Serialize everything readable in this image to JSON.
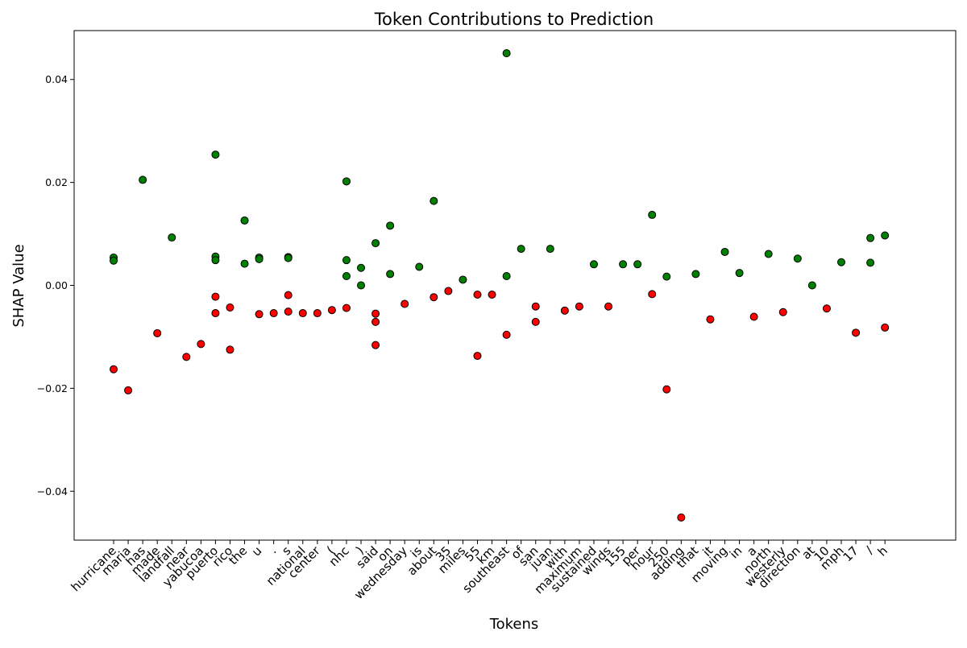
{
  "chart_data": {
    "type": "scatter",
    "title": "Token Contributions to Prediction",
    "xlabel": "Tokens",
    "ylabel": "SHAP Value",
    "ylim": [
      -0.0495,
      0.0495
    ],
    "yticks": [
      -0.04,
      -0.02,
      0.0,
      0.02,
      0.04
    ],
    "ytick_labels": [
      "−0.04",
      "−0.02",
      "0.00",
      "0.02",
      "0.04"
    ],
    "grid": false,
    "legend": "none",
    "colors": {
      "positive": "#008000",
      "negative": "#ff0000",
      "edge": "#000000"
    },
    "categories": [
      "hurricane",
      "maria",
      "has",
      "made",
      "landfall",
      "near",
      "yabucoa",
      "puerto",
      "rico",
      "the",
      "u",
      ".",
      "s",
      "national",
      "center",
      "(",
      "nhc",
      ")",
      "said",
      "on",
      "wednesday",
      "is",
      "about",
      "35",
      "miles",
      "55",
      "km",
      "southeast",
      "of",
      "san",
      "juan",
      "with",
      "maximum",
      "sustained",
      "winds",
      "155",
      "per",
      "hour",
      "250",
      "adding",
      "that",
      "it",
      "moving",
      "in",
      "a",
      "north",
      "westerly",
      "direction",
      "at",
      "10",
      "mph",
      "17",
      "/",
      "h"
    ],
    "points": [
      {
        "x": "hurricane",
        "y": 0.0054
      },
      {
        "x": "hurricane",
        "y": 0.0048
      },
      {
        "x": "hurricane",
        "y": -0.0163
      },
      {
        "x": "maria",
        "y": -0.0204
      },
      {
        "x": "has",
        "y": 0.0205
      },
      {
        "x": "made",
        "y": -0.0093
      },
      {
        "x": "landfall",
        "y": 0.0093
      },
      {
        "x": "near",
        "y": -0.0139
      },
      {
        "x": "yabucoa",
        "y": -0.0114
      },
      {
        "x": "puerto",
        "y": 0.0254
      },
      {
        "x": "puerto",
        "y": 0.0056
      },
      {
        "x": "puerto",
        "y": 0.0049
      },
      {
        "x": "puerto",
        "y": -0.0022
      },
      {
        "x": "puerto",
        "y": -0.0054
      },
      {
        "x": "rico",
        "y": -0.0043
      },
      {
        "x": "rico",
        "y": -0.0125
      },
      {
        "x": "the",
        "y": 0.0126
      },
      {
        "x": "the",
        "y": 0.0042
      },
      {
        "x": "u",
        "y": 0.0054
      },
      {
        "x": "u",
        "y": 0.0051
      },
      {
        "x": "u",
        "y": -0.0056
      },
      {
        "x": ".",
        "y": -0.0054
      },
      {
        "x": "s",
        "y": 0.0055
      },
      {
        "x": "s",
        "y": 0.0053
      },
      {
        "x": "s",
        "y": -0.0019
      },
      {
        "x": "s",
        "y": -0.0051
      },
      {
        "x": "national",
        "y": -0.0054
      },
      {
        "x": "center",
        "y": -0.0054
      },
      {
        "x": "(",
        "y": -0.0048
      },
      {
        "x": "nhc",
        "y": 0.0202
      },
      {
        "x": "nhc",
        "y": 0.0049
      },
      {
        "x": "nhc",
        "y": 0.0018
      },
      {
        "x": "nhc",
        "y": -0.0044
      },
      {
        "x": ")",
        "y": 0.0034
      },
      {
        "x": ")",
        "y": 0.0
      },
      {
        "x": "said",
        "y": 0.0082
      },
      {
        "x": "said",
        "y": -0.0055
      },
      {
        "x": "said",
        "y": -0.0071
      },
      {
        "x": "said",
        "y": -0.0116
      },
      {
        "x": "on",
        "y": 0.0116
      },
      {
        "x": "on",
        "y": 0.0022
      },
      {
        "x": "wednesday",
        "y": -0.0036
      },
      {
        "x": "is",
        "y": 0.0036
      },
      {
        "x": "about",
        "y": 0.0164
      },
      {
        "x": "about",
        "y": -0.0023
      },
      {
        "x": "35",
        "y": -0.0011
      },
      {
        "x": "miles",
        "y": 0.0011
      },
      {
        "x": "55",
        "y": -0.0018
      },
      {
        "x": "55",
        "y": -0.0137
      },
      {
        "x": "km",
        "y": -0.0018
      },
      {
        "x": "southeast",
        "y": 0.0451
      },
      {
        "x": "southeast",
        "y": 0.0018
      },
      {
        "x": "southeast",
        "y": -0.0096
      },
      {
        "x": "of",
        "y": 0.0071
      },
      {
        "x": "san",
        "y": -0.0041
      },
      {
        "x": "san",
        "y": -0.0071
      },
      {
        "x": "juan",
        "y": 0.0071
      },
      {
        "x": "with",
        "y": -0.0049
      },
      {
        "x": "maximum",
        "y": -0.0041
      },
      {
        "x": "sustained",
        "y": 0.0041
      },
      {
        "x": "winds",
        "y": -0.0041
      },
      {
        "x": "155",
        "y": 0.0041
      },
      {
        "x": "per",
        "y": 0.0041
      },
      {
        "x": "hour",
        "y": 0.0137
      },
      {
        "x": "hour",
        "y": -0.0017
      },
      {
        "x": "250",
        "y": 0.0017
      },
      {
        "x": "250",
        "y": -0.0202
      },
      {
        "x": "adding",
        "y": -0.0451
      },
      {
        "x": "that",
        "y": 0.0022
      },
      {
        "x": "it",
        "y": -0.0066
      },
      {
        "x": "moving",
        "y": 0.0065
      },
      {
        "x": "in",
        "y": 0.0024
      },
      {
        "x": "a",
        "y": -0.0061
      },
      {
        "x": "north",
        "y": 0.0061
      },
      {
        "x": "westerly",
        "y": -0.0052
      },
      {
        "x": "direction",
        "y": 0.0052
      },
      {
        "x": "at",
        "y": 0.0
      },
      {
        "x": "10",
        "y": -0.0045
      },
      {
        "x": "mph",
        "y": 0.0045
      },
      {
        "x": "17",
        "y": -0.0092
      },
      {
        "x": "/",
        "y": 0.0092
      },
      {
        "x": "/",
        "y": 0.0044
      },
      {
        "x": "h",
        "y": 0.0097
      },
      {
        "x": "h",
        "y": -0.0082
      }
    ]
  }
}
